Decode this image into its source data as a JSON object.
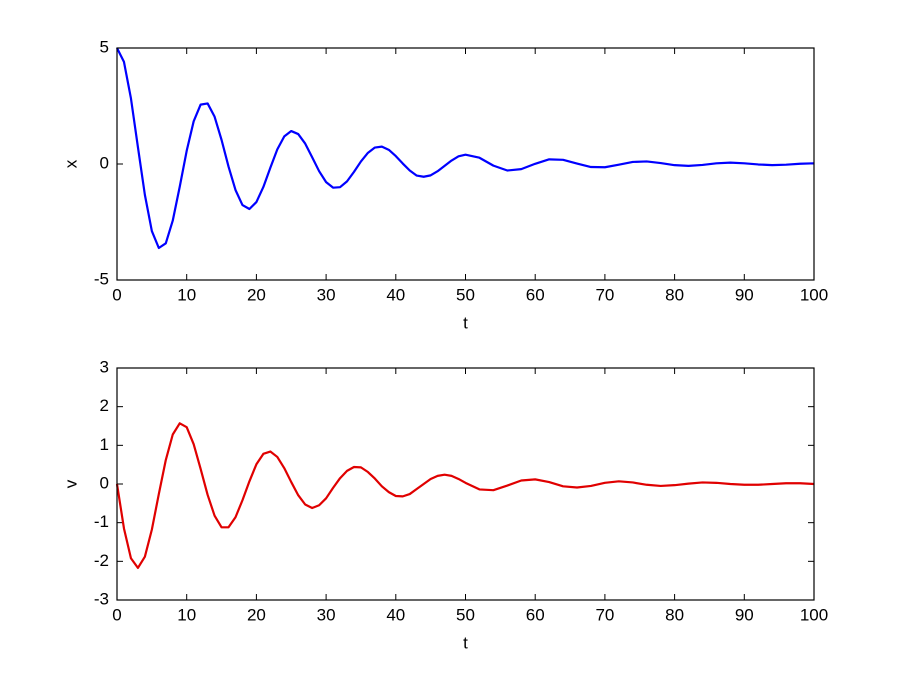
{
  "chart_data": [
    {
      "type": "line",
      "xlabel": "t",
      "ylabel": "x",
      "color": "#0000ff",
      "x": [
        0,
        1,
        2,
        3,
        4,
        5,
        6,
        7,
        8,
        9,
        10,
        11,
        12,
        13,
        14,
        15,
        16,
        17,
        18,
        19,
        20,
        21,
        22,
        23,
        24,
        25,
        26,
        27,
        28,
        29,
        30,
        31,
        32,
        33,
        34,
        35,
        36,
        37,
        38,
        39,
        40,
        41,
        42,
        43,
        44,
        45,
        46,
        47,
        48,
        49,
        50,
        52,
        54,
        56,
        58,
        60,
        62,
        64,
        66,
        68,
        70,
        72,
        74,
        76,
        78,
        80,
        82,
        84,
        86,
        88,
        90,
        92,
        94,
        96,
        98,
        100
      ],
      "values": [
        5,
        4.4,
        2.83,
        0.73,
        -1.33,
        -2.89,
        -3.62,
        -3.42,
        -2.44,
        -0.98,
        0.57,
        1.84,
        2.56,
        2.61,
        2.04,
        1.04,
        -0.11,
        -1.12,
        -1.77,
        -1.94,
        -1.64,
        -0.99,
        -0.16,
        0.63,
        1.19,
        1.42,
        1.29,
        0.88,
        0.29,
        -0.31,
        -0.78,
        -1.02,
        -1,
        -0.75,
        -0.34,
        0.11,
        0.48,
        0.71,
        0.75,
        0.61,
        0.34,
        0.02,
        -0.28,
        -0.5,
        -0.55,
        -0.49,
        -0.31,
        -0.08,
        0.15,
        0.33,
        0.4,
        0.27,
        -0.07,
        -0.28,
        -0.22,
        0.01,
        0.2,
        0.18,
        0.02,
        -0.13,
        -0.14,
        -0.03,
        0.09,
        0.11,
        0.04,
        -0.05,
        -0.08,
        -0.04,
        0.03,
        0.06,
        0.03,
        -0.02,
        -0.05,
        -0.03,
        0.01,
        0.03
      ],
      "xlim": [
        0,
        100
      ],
      "xticks": [
        0,
        10,
        20,
        30,
        40,
        50,
        60,
        70,
        80,
        90,
        100
      ],
      "ylim": [
        -5,
        5
      ],
      "yticks": [
        -5,
        0,
        5
      ]
    },
    {
      "type": "line",
      "xlabel": "t",
      "ylabel": "v",
      "color": "#e00000",
      "x": [
        0,
        1,
        2,
        3,
        4,
        5,
        6,
        7,
        8,
        9,
        10,
        11,
        12,
        13,
        14,
        15,
        16,
        17,
        18,
        19,
        20,
        21,
        22,
        23,
        24,
        25,
        26,
        27,
        28,
        29,
        30,
        31,
        32,
        33,
        34,
        35,
        36,
        37,
        38,
        39,
        40,
        41,
        42,
        43,
        44,
        45,
        46,
        47,
        48,
        49,
        50,
        52,
        54,
        56,
        58,
        60,
        62,
        64,
        66,
        68,
        70,
        72,
        74,
        76,
        78,
        80,
        82,
        84,
        86,
        88,
        90,
        92,
        94,
        96,
        98,
        100
      ],
      "values": [
        0,
        -1.15,
        -1.92,
        -2.17,
        -1.88,
        -1.18,
        -0.26,
        0.62,
        1.28,
        1.57,
        1.47,
        1.03,
        0.39,
        -0.28,
        -0.82,
        -1.12,
        -1.12,
        -0.86,
        -0.42,
        0.07,
        0.51,
        0.78,
        0.84,
        0.7,
        0.41,
        0.05,
        -0.29,
        -0.53,
        -0.62,
        -0.55,
        -0.37,
        -0.1,
        0.15,
        0.34,
        0.44,
        0.43,
        0.31,
        0.14,
        -0.06,
        -0.21,
        -0.31,
        -0.32,
        -0.26,
        -0.13,
        0,
        0.13,
        0.21,
        0.24,
        0.21,
        0.13,
        0.03,
        -0.14,
        -0.16,
        -0.04,
        0.09,
        0.12,
        0.05,
        -0.06,
        -0.09,
        -0.05,
        0.03,
        0.07,
        0.04,
        -0.02,
        -0.05,
        -0.03,
        0.01,
        0.04,
        0.03,
        0,
        -0.02,
        -0.02,
        0,
        0.02,
        0.02,
        0
      ],
      "xlim": [
        0,
        100
      ],
      "xticks": [
        0,
        10,
        20,
        30,
        40,
        50,
        60,
        70,
        80,
        90,
        100
      ],
      "ylim": [
        -3,
        3
      ],
      "yticks": [
        -3,
        -2,
        -1,
        0,
        1,
        2,
        3
      ]
    }
  ]
}
